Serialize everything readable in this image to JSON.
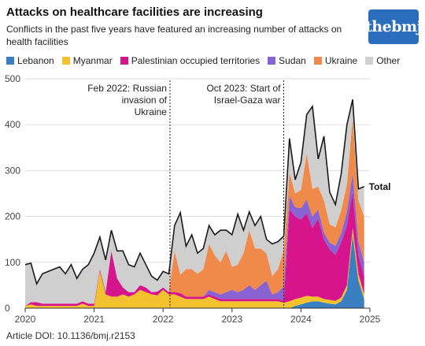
{
  "title": "Attacks on healthcare facilities are increasing",
  "subtitle": "Conflicts in the past five years have featured an increasing number of attacks on health facilities",
  "logo_text": "thebmj",
  "footer": "Article DOI: 10.1136/bmj.r2153",
  "chart_data": {
    "type": "area",
    "stacked": true,
    "x_unit": "year (decimal)",
    "xlim": [
      2020,
      2025
    ],
    "ylim": [
      0,
      500
    ],
    "x_ticks": [
      "2020",
      "2021",
      "2022",
      "2023",
      "2024",
      "2025"
    ],
    "y_ticks": [
      "0",
      "100",
      "200",
      "300",
      "400",
      "500"
    ],
    "grid": "horizontal",
    "legend_position": "top",
    "x": [
      2020.0,
      2020.083,
      2020.167,
      2020.25,
      2020.333,
      2020.417,
      2020.5,
      2020.583,
      2020.667,
      2020.75,
      2020.833,
      2020.917,
      2021.0,
      2021.083,
      2021.167,
      2021.25,
      2021.333,
      2021.417,
      2021.5,
      2021.583,
      2021.667,
      2021.75,
      2021.833,
      2021.917,
      2022.0,
      2022.083,
      2022.167,
      2022.25,
      2022.333,
      2022.417,
      2022.5,
      2022.583,
      2022.667,
      2022.75,
      2022.833,
      2022.917,
      2023.0,
      2023.083,
      2023.167,
      2023.25,
      2023.333,
      2023.417,
      2023.5,
      2023.583,
      2023.667,
      2023.75,
      2023.833,
      2023.917,
      2024.0,
      2024.083,
      2024.167,
      2024.25,
      2024.333,
      2024.417,
      2024.5,
      2024.583,
      2024.667,
      2024.75,
      2024.833,
      2024.917
    ],
    "series": [
      {
        "name": "Lebanon",
        "color": "#3a7fc1",
        "values": [
          0,
          0,
          0,
          0,
          0,
          0,
          0,
          0,
          0,
          0,
          0,
          0,
          0,
          0,
          0,
          0,
          0,
          0,
          0,
          0,
          0,
          0,
          0,
          0,
          0,
          0,
          0,
          0,
          0,
          0,
          0,
          0,
          0,
          0,
          0,
          0,
          0,
          0,
          0,
          0,
          0,
          0,
          0,
          0,
          0,
          0,
          0,
          5,
          8,
          12,
          15,
          15,
          12,
          10,
          8,
          15,
          40,
          160,
          60,
          20
        ]
      },
      {
        "name": "Myanmar",
        "color": "#f2c12e",
        "values": [
          5,
          8,
          5,
          5,
          5,
          5,
          5,
          5,
          5,
          5,
          10,
          5,
          5,
          80,
          30,
          25,
          25,
          30,
          25,
          30,
          40,
          35,
          30,
          28,
          40,
          30,
          30,
          25,
          20,
          20,
          20,
          20,
          25,
          20,
          15,
          15,
          15,
          15,
          15,
          15,
          15,
          15,
          15,
          15,
          15,
          12,
          15,
          15,
          15,
          15,
          10,
          10,
          8,
          8,
          8,
          8,
          10,
          15,
          15,
          10
        ]
      },
      {
        "name": "Palestinian occupied territories",
        "color": "#d6158c",
        "values": [
          0,
          5,
          8,
          5,
          5,
          5,
          5,
          5,
          5,
          5,
          5,
          5,
          5,
          5,
          5,
          100,
          40,
          15,
          10,
          5,
          10,
          10,
          5,
          8,
          5,
          5,
          5,
          8,
          5,
          5,
          5,
          5,
          5,
          5,
          5,
          5,
          5,
          5,
          5,
          5,
          5,
          5,
          5,
          5,
          5,
          5,
          200,
          180,
          170,
          180,
          150,
          170,
          130,
          110,
          100,
          120,
          130,
          80,
          40,
          40
        ]
      },
      {
        "name": "Sudan",
        "color": "#8a63d2",
        "values": [
          0,
          0,
          0,
          0,
          0,
          0,
          0,
          0,
          0,
          0,
          0,
          0,
          0,
          0,
          0,
          0,
          0,
          0,
          0,
          0,
          0,
          0,
          0,
          0,
          0,
          0,
          0,
          0,
          0,
          0,
          0,
          0,
          10,
          10,
          10,
          15,
          20,
          15,
          20,
          30,
          20,
          30,
          40,
          10,
          15,
          30,
          30,
          20,
          25,
          30,
          25,
          20,
          15,
          15,
          20,
          20,
          30,
          40,
          30,
          30
        ]
      },
      {
        "name": "Ukraine",
        "color": "#f08a4b",
        "values": [
          0,
          0,
          0,
          0,
          0,
          0,
          0,
          0,
          0,
          0,
          0,
          0,
          0,
          0,
          0,
          0,
          0,
          0,
          0,
          0,
          0,
          0,
          0,
          0,
          0,
          0,
          90,
          40,
          60,
          60,
          50,
          60,
          100,
          80,
          70,
          90,
          50,
          60,
          80,
          120,
          90,
          80,
          60,
          40,
          50,
          80,
          50,
          30,
          40,
          100,
          60,
          50,
          70,
          40,
          40,
          50,
          60,
          120,
          90,
          100
        ]
      },
      {
        "name": "Other",
        "color": "#cfcfcf",
        "values": [
          90,
          85,
          40,
          65,
          70,
          75,
          80,
          65,
          85,
          55,
          70,
          85,
          110,
          70,
          70,
          45,
          60,
          80,
          60,
          55,
          70,
          50,
          35,
          25,
          35,
          40,
          55,
          135,
          50,
          75,
          45,
          45,
          40,
          45,
          70,
          45,
          70,
          110,
          50,
          40,
          50,
          70,
          30,
          70,
          60,
          30,
          75,
          30,
          60,
          85,
          180,
          60,
          140,
          70,
          50,
          80,
          130,
          40,
          25,
          65
        ]
      }
    ],
    "total_label": "Total",
    "annotations": [
      {
        "x": 2022.1,
        "text": "Feb 2022: Russian\ninvasion of\nUkraine",
        "align": "right"
      },
      {
        "x": 2023.75,
        "text": "Oct 2023: Start of\nIsrael-Gaza war",
        "align": "right"
      }
    ]
  }
}
